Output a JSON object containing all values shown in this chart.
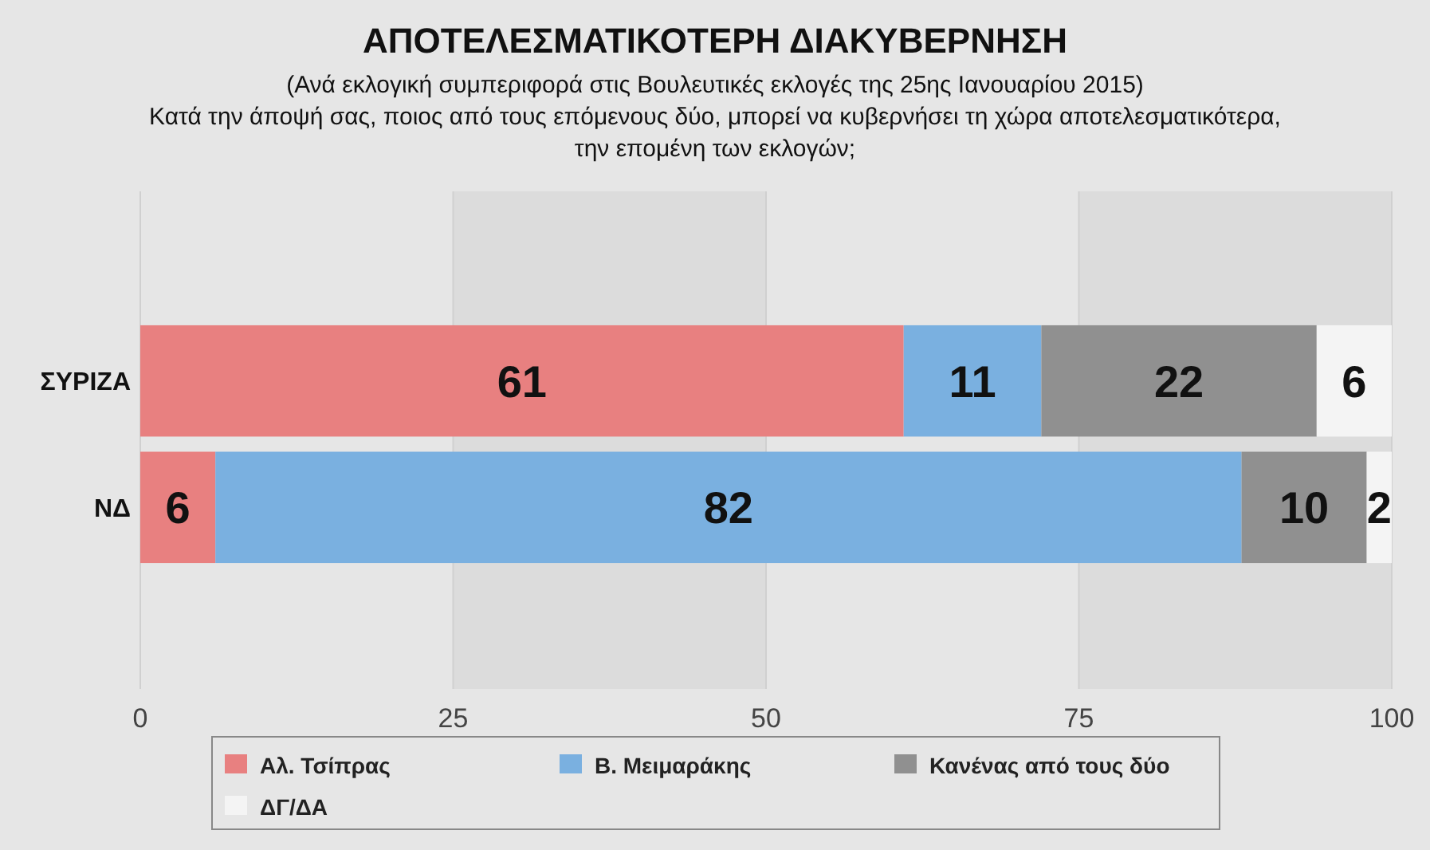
{
  "chart_data": {
    "type": "bar",
    "orientation": "horizontal",
    "stacked": true,
    "title": "ΑΠΟΤΕΛΕΣΜΑΤΙΚΟΤΕΡΗ ΔΙΑΚΥΒΕΡΝΗΣΗ",
    "subtitle": "(Ανά εκλογική συμπεριφορά στις Βουλευτικές εκλογές της 25ης Ιανουαρίου 2015)\nΚατά την άποψή σας, ποιος από τους επόμενους δύο, μπορεί να κυβερνήσει τη χώρα αποτελεσματικότερα,\nτην επομένη των εκλογών;",
    "categories": [
      "ΣΥΡΙΖΑ",
      "ΝΔ"
    ],
    "series": [
      {
        "name": "Αλ. Τσίπρας",
        "color": "#e88080",
        "values": [
          61,
          6
        ]
      },
      {
        "name": "Β. Μειμαράκης",
        "color": "#7ab0e0",
        "values": [
          11,
          82
        ]
      },
      {
        "name": "Κανένας από τους δύο",
        "color": "#909090",
        "values": [
          22,
          10
        ]
      },
      {
        "name": "ΔΓ/ΔΑ",
        "color": "#f4f4f4",
        "values": [
          6,
          2
        ]
      }
    ],
    "xlim": [
      0,
      100
    ],
    "xticks": [
      0,
      25,
      50,
      75,
      100
    ],
    "grid": "x",
    "legend": "bottom",
    "data_labels": true
  }
}
